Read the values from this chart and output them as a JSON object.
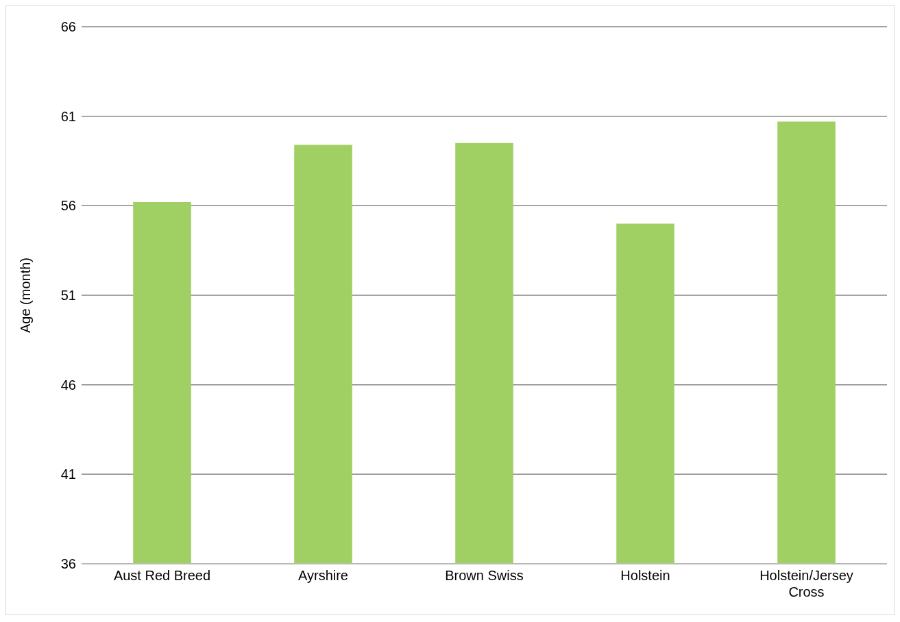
{
  "chart_data": {
    "type": "bar",
    "ylabel": "Age (month)",
    "categories": [
      "Aust Red Breed",
      "Ayrshire",
      "Brown Swiss",
      "Holstein",
      "Holstein/Jersey Cross"
    ],
    "values": [
      56.2,
      59.4,
      59.5,
      55.0,
      60.7
    ],
    "color": "#a0d063",
    "ylim": [
      36,
      66
    ],
    "yticks": [
      36,
      41,
      46,
      51,
      56,
      61,
      66
    ],
    "grid": "y"
  }
}
